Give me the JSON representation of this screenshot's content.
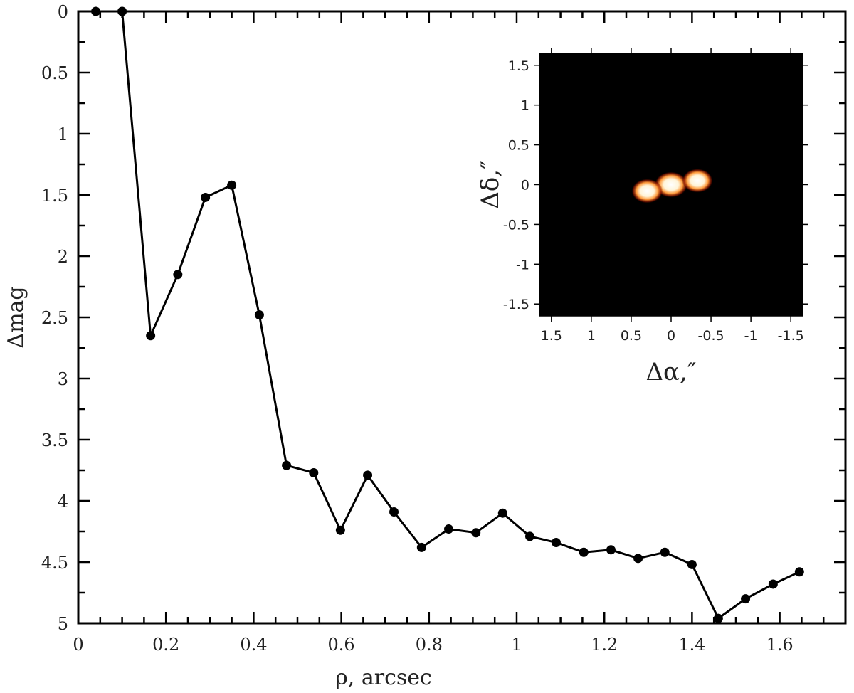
{
  "chart_data": [
    {
      "type": "line",
      "xlabel": "ρ, arcsec",
      "ylabel": "Δmag",
      "xlim": [
        0,
        1.75
      ],
      "ylim": [
        0,
        5
      ],
      "y_inverted": true,
      "grid": false,
      "marker": "circle",
      "line_color": "#000000",
      "x_ticks": [
        0,
        0.2,
        0.4,
        0.6,
        0.8,
        1,
        1.2,
        1.4,
        1.6
      ],
      "x_tick_labels": [
        "0",
        "0.2",
        "0.4",
        "0.6",
        "0.8",
        "1",
        "1.2",
        "1.4",
        "1.6"
      ],
      "y_ticks": [
        0,
        0.5,
        1,
        1.5,
        2,
        2.5,
        3,
        3.5,
        4,
        4.5,
        5
      ],
      "y_tick_labels": [
        "0",
        "0.5",
        "1",
        "1.5",
        "2",
        "2.5",
        "3",
        "3.5",
        "4",
        "4.5",
        "5"
      ],
      "x": [
        0.04,
        0.1,
        0.165,
        0.227,
        0.29,
        0.35,
        0.413,
        0.475,
        0.537,
        0.598,
        0.66,
        0.72,
        0.783,
        0.845,
        0.907,
        0.968,
        1.03,
        1.09,
        1.153,
        1.215,
        1.277,
        1.338,
        1.4,
        1.46,
        1.522,
        1.585,
        1.645
      ],
      "y": [
        0,
        0,
        2.65,
        2.15,
        1.52,
        1.42,
        2.48,
        3.71,
        3.77,
        4.24,
        3.79,
        4.09,
        4.38,
        4.23,
        4.26,
        4.1,
        4.29,
        4.34,
        4.42,
        4.4,
        4.47,
        4.42,
        4.52,
        4.96,
        4.8,
        4.68,
        4.58
      ]
    },
    {
      "type": "heatmap",
      "xlabel": "Δα,″",
      "ylabel": "Δδ,″",
      "xlim": [
        1.65,
        -1.65
      ],
      "ylim": [
        -1.65,
        1.65
      ],
      "x_ticks": [
        1.5,
        1,
        0.5,
        0,
        -0.5,
        -1,
        -1.5
      ],
      "x_tick_labels": [
        "1.5",
        "1",
        "0.5",
        "0",
        "-0.5",
        "-1",
        "-1.5"
      ],
      "y_ticks": [
        1.5,
        1,
        0.5,
        0,
        -0.5,
        -1,
        -1.5
      ],
      "y_tick_labels": [
        "1.5",
        "1",
        "0.5",
        "0",
        "-0.5",
        "-1",
        "-1.5"
      ],
      "colormap": [
        "#000000",
        "#5a0000",
        "#b82a05",
        "#ff8a30",
        "#ffffff"
      ],
      "sources": [
        {
          "x": 0,
          "y": 0,
          "intensity": 1.0
        },
        {
          "x": 0.3,
          "y": -0.08,
          "intensity": 0.85
        },
        {
          "x": -0.33,
          "y": 0.05,
          "intensity": 0.8
        }
      ]
    }
  ]
}
